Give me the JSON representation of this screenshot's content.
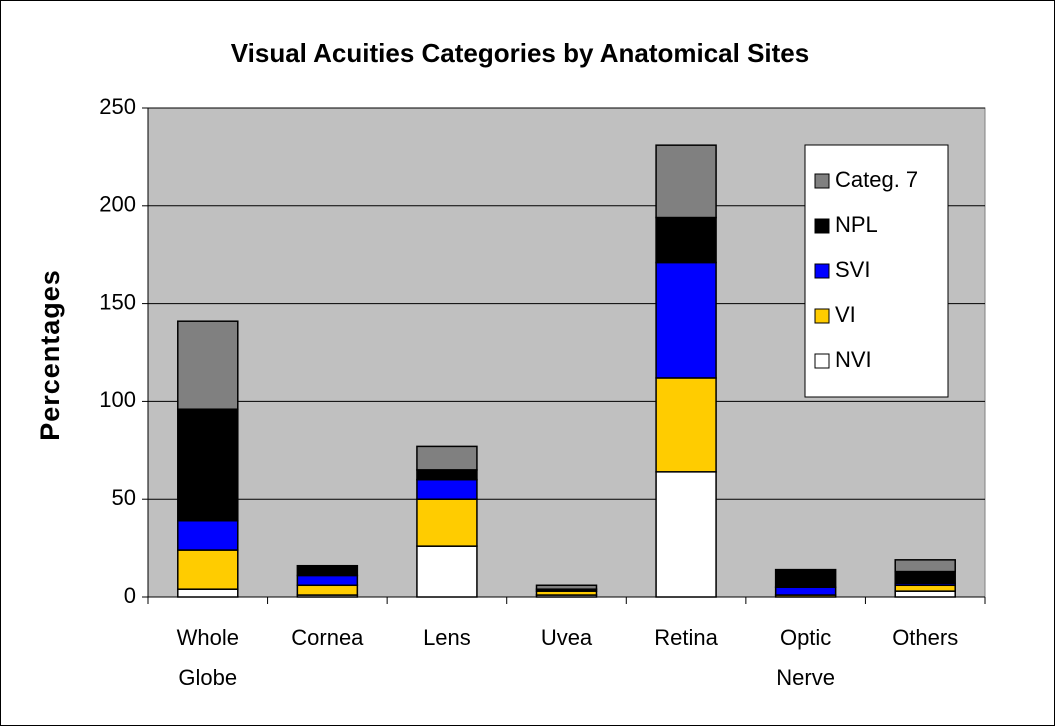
{
  "chart_data": {
    "type": "stacked_bar",
    "title": "Visual Acuities Categories by Anatomical Sites",
    "y_label": "Percentages",
    "categories": [
      "Whole Globe",
      "Cornea",
      "Lens",
      "Uvea",
      "Retina",
      "Optic Nerve",
      "Others"
    ],
    "series": [
      {
        "name": "NVI",
        "color": "#ffffff",
        "values": [
          4,
          1,
          26,
          1,
          64,
          0,
          3
        ]
      },
      {
        "name": "VI",
        "color": "#ffcc00",
        "values": [
          20,
          5,
          24,
          2,
          48,
          1,
          3
        ]
      },
      {
        "name": "SVI",
        "color": "#0000ff",
        "values": [
          15,
          5,
          10,
          0,
          59,
          4,
          1
        ]
      },
      {
        "name": "NPL",
        "color": "#000000",
        "values": [
          57,
          5,
          5,
          1,
          23,
          9,
          6
        ]
      },
      {
        "name": "Categ. 7",
        "color": "#808080",
        "values": [
          45,
          0,
          12,
          2,
          37,
          0,
          6
        ]
      }
    ],
    "ylim": [
      0,
      250
    ],
    "yticks": [
      0,
      50,
      100,
      150,
      200,
      250
    ],
    "grid": true,
    "legend": "right"
  }
}
